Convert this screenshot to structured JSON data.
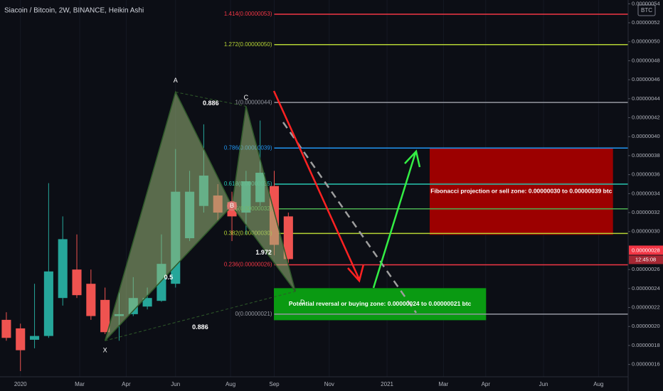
{
  "chart_data": {
    "type": "candlestick",
    "title": "Siacoin / Bitcoin, 2W, BINANCE, Heikin Ashi",
    "currency": "BTC",
    "xlim": [
      -0.45,
      44.1
    ],
    "xticks": [
      {
        "value": 1,
        "label": "2020"
      },
      {
        "value": 5.2,
        "label": "Mar"
      },
      {
        "value": 8.5,
        "label": "Apr"
      },
      {
        "value": 12,
        "label": "Jun"
      },
      {
        "value": 15.9,
        "label": "Aug"
      },
      {
        "value": 19,
        "label": "Sep"
      },
      {
        "value": 22.9,
        "label": "Nov"
      },
      {
        "value": 27,
        "label": "2021"
      },
      {
        "value": 31,
        "label": "Mar"
      },
      {
        "value": 34,
        "label": "Apr"
      },
      {
        "value": 38.1,
        "label": "Jun"
      },
      {
        "value": 42,
        "label": "Aug"
      }
    ],
    "ylim": [
      1.47e-07,
      5.44e-07
    ],
    "yticks": [
      {
        "value": 1.6e-07,
        "label": "0.00000016"
      },
      {
        "value": 1.8e-07,
        "label": "0.00000018"
      },
      {
        "value": 2e-07,
        "label": "0.00000020"
      },
      {
        "value": 2.2e-07,
        "label": "0.00000022"
      },
      {
        "value": 2.4e-07,
        "label": "0.00000024"
      },
      {
        "value": 2.6e-07,
        "label": "0.00000026"
      },
      {
        "value": 3e-07,
        "label": "0.00000030"
      },
      {
        "value": 3.2e-07,
        "label": "0.00000032"
      },
      {
        "value": 3.4e-07,
        "label": "0.00000034"
      },
      {
        "value": 3.6e-07,
        "label": "0.00000036"
      },
      {
        "value": 3.8e-07,
        "label": "0.00000038"
      },
      {
        "value": 4e-07,
        "label": "0.00000040"
      },
      {
        "value": 4.2e-07,
        "label": "0.00000042"
      },
      {
        "value": 4.4e-07,
        "label": "0.00000044"
      },
      {
        "value": 4.6e-07,
        "label": "0.00000046"
      },
      {
        "value": 4.8e-07,
        "label": "0.00000048"
      },
      {
        "value": 5e-07,
        "label": "0.00000050"
      },
      {
        "value": 5.2e-07,
        "label": "0.00000052"
      },
      {
        "value": 5.4e-07,
        "label": "0.00000054"
      }
    ],
    "up_color": "#26a69a",
    "down_color": "#ef5350",
    "open": [
      2.07e-07,
      1.98e-07,
      1.86e-07,
      1.9e-07,
      2.3e-07,
      2.6e-07,
      2.45e-07,
      2.28e-07,
      2.11e-07,
      2.13e-07,
      2.21e-07,
      2.27e-07,
      2.45e-07,
      2.93e-07,
      3.27e-07,
      3.38e-07,
      3.31e-07,
      3.2e-07,
      3.31e-07,
      3.48e-07,
      3.16e-07
    ],
    "high": [
      2.15e-07,
      2.03e-07,
      2.45e-07,
      3.51e-07,
      3.16e-07,
      2.97e-07,
      2.6e-07,
      2.41e-07,
      2.37e-07,
      2.52e-07,
      2.41e-07,
      2.97e-07,
      3.87e-07,
      3.64e-07,
      4.13e-07,
      3.5e-07,
      3.42e-07,
      3.64e-07,
      4.17e-07,
      3.64e-07,
      3.2e-07
    ],
    "low": [
      1.85e-07,
      1.53e-07,
      1.77e-07,
      1.88e-07,
      2.22e-07,
      2.3e-07,
      2.07e-07,
      1.92e-07,
      1.85e-07,
      2.11e-07,
      2.18e-07,
      2.26e-07,
      2.41e-07,
      2.9e-07,
      3.2e-07,
      3.12e-07,
      2.9e-07,
      2.97e-07,
      3.27e-07,
      2.75e-07,
      2.67e-07
    ],
    "close": [
      1.88e-07,
      1.75e-07,
      1.9e-07,
      2.58e-07,
      2.92e-07,
      2.33e-07,
      2.11e-07,
      1.94e-07,
      2.13e-07,
      2.3e-07,
      2.3e-07,
      2.66e-07,
      3.42e-07,
      3.42e-07,
      3.59e-07,
      3.2e-07,
      3.16e-07,
      3.53e-07,
      3.62e-07,
      2.86e-07,
      2.71e-07
    ],
    "fib_levels": {
      "x": 19,
      "levels": [
        {
          "label": "1.414(0.00000053)",
          "value": 5.29e-07,
          "color": "#f23645"
        },
        {
          "label": "1.272(0.00000050)",
          "value": 4.97e-07,
          "color": "#b5d334"
        },
        {
          "label": "1(0.00000044)",
          "value": 4.36e-07,
          "color": "#9598a1"
        },
        {
          "label": "0.786(0.00000039)",
          "value": 3.88e-07,
          "color": "#2196f3"
        },
        {
          "label": "0.618(0.00000035)",
          "value": 3.5e-07,
          "color": "#26c6b0"
        },
        {
          "label": "0.5(0.00000032)",
          "value": 3.24e-07,
          "color": "#4caf50"
        },
        {
          "label": "0.382(0.00000030)",
          "value": 2.98e-07,
          "color": "#b5d334"
        },
        {
          "label": "0.236(0.00000026)",
          "value": 2.65e-07,
          "color": "#f23645"
        },
        {
          "label": "0(0.00000021)",
          "value": 2.13e-07,
          "color": "#9598a1"
        }
      ]
    },
    "pattern": {
      "points": [
        {
          "label": "X",
          "x": 7,
          "y": 1.85e-07
        },
        {
          "label": "A",
          "x": 12,
          "y": 4.47e-07
        },
        {
          "label": "B",
          "x": 16,
          "y": 3.27e-07
        },
        {
          "label": "C",
          "x": 17,
          "y": 4.32e-07
        },
        {
          "label": "D",
          "x": 20.5,
          "y": 2.37e-07
        }
      ],
      "ratios": [
        "0.5",
        "0.886",
        "1.972",
        "0.886"
      ]
    },
    "zones": [
      {
        "label": "Fibonacci projection or sell zone: 0.00000030 to 0.00000039 btc",
        "x": [
          30.05,
          43
        ],
        "y": [
          2.97e-07,
          3.88e-07
        ],
        "color": "#9c0000"
      },
      {
        "label": "Potential reversal or buying zone: 0.00000024 to 0.00000021 btc",
        "x": [
          19,
          34
        ],
        "y": [
          2.07e-07,
          2.4e-07
        ],
        "color": "#0a9a12"
      }
    ],
    "last_price": {
      "value": 2.8e-07,
      "label": "0.00000028",
      "countdown": "12:45:08"
    }
  }
}
